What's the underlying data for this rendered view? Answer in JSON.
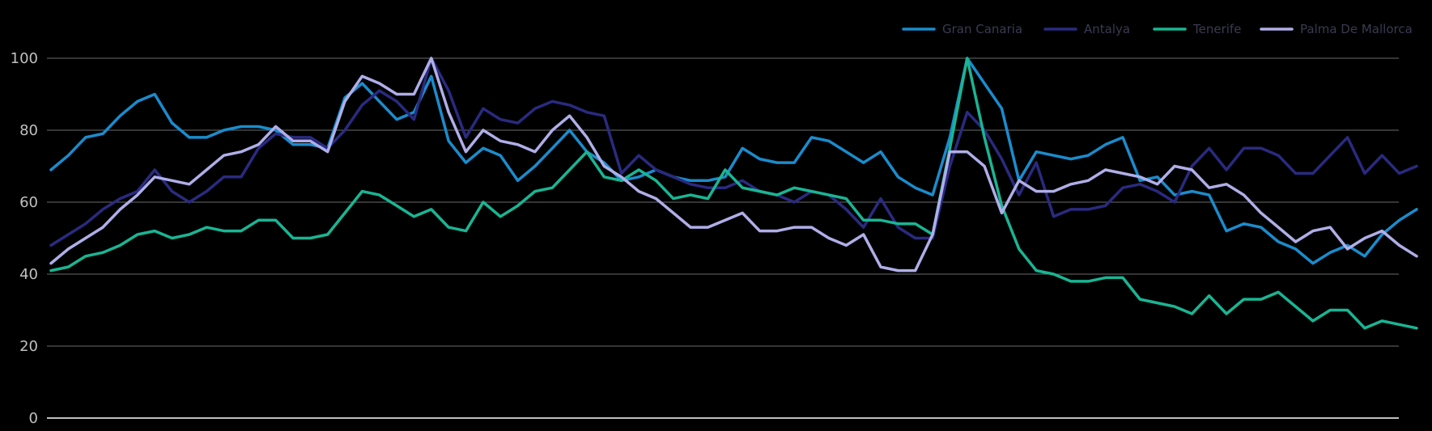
{
  "chart_data": {
    "type": "line",
    "title": "",
    "xlabel": "",
    "ylabel": "",
    "ylim": [
      0,
      100
    ],
    "yticks": [
      0,
      20,
      40,
      60,
      80,
      100
    ],
    "grid": true,
    "legend_position": "top-right",
    "x": [
      1,
      2,
      3,
      4,
      5,
      6,
      7,
      8,
      9,
      10,
      11,
      12,
      13,
      14,
      15,
      16,
      17,
      18,
      19,
      20,
      21,
      22,
      23,
      24,
      25,
      26,
      27,
      28,
      29,
      30,
      31,
      32,
      33,
      34,
      35,
      36,
      37,
      38,
      39,
      40,
      41,
      42,
      43,
      44,
      45,
      46,
      47,
      48,
      49,
      50,
      51,
      52,
      53,
      54,
      55,
      56,
      57,
      58,
      59,
      60,
      61,
      62,
      63,
      64,
      65,
      66,
      67,
      68,
      69,
      70,
      71,
      72,
      73,
      74,
      75,
      76,
      77,
      78,
      79,
      80
    ],
    "series": [
      {
        "name": "Gran Canaria",
        "color": "#1a8ccc",
        "values": [
          69,
          73,
          78,
          79,
          84,
          88,
          90,
          82,
          78,
          78,
          80,
          81,
          81,
          80,
          76,
          76,
          75,
          89,
          93,
          88,
          83,
          85,
          95,
          77,
          71,
          75,
          73,
          66,
          70,
          75,
          80,
          74,
          71,
          66,
          67,
          69,
          67,
          66,
          66,
          67,
          75,
          72,
          71,
          71,
          78,
          77,
          74,
          71,
          74,
          67,
          64,
          62,
          78,
          100,
          93,
          86,
          66,
          74,
          73,
          72,
          73,
          76,
          78,
          66,
          67,
          62,
          63,
          62,
          52,
          54,
          53,
          49,
          47,
          43,
          46,
          48,
          45,
          51,
          55,
          58
        ]
      },
      {
        "name": "Antalya",
        "color": "#2a2a80",
        "values": [
          48,
          51,
          54,
          58,
          61,
          63,
          69,
          63,
          60,
          63,
          67,
          67,
          75,
          79,
          78,
          78,
          75,
          80,
          87,
          91,
          88,
          83,
          100,
          91,
          78,
          86,
          83,
          82,
          86,
          88,
          87,
          85,
          84,
          68,
          73,
          69,
          67,
          65,
          64,
          64,
          66,
          63,
          62,
          60,
          63,
          62,
          58,
          53,
          61,
          53,
          50,
          50,
          70,
          85,
          80,
          72,
          62,
          71,
          56,
          58,
          58,
          59,
          64,
          65,
          63,
          60,
          70,
          75,
          69,
          75,
          75,
          73,
          68,
          68,
          73,
          78,
          68,
          73,
          68,
          70
        ]
      },
      {
        "name": "Tenerife",
        "color": "#1ab593",
        "values": [
          41,
          42,
          45,
          46,
          48,
          51,
          52,
          50,
          51,
          53,
          52,
          52,
          55,
          55,
          50,
          50,
          51,
          57,
          63,
          62,
          59,
          56,
          58,
          53,
          52,
          60,
          56,
          59,
          63,
          64,
          69,
          74,
          67,
          66,
          69,
          66,
          61,
          62,
          61,
          69,
          64,
          63,
          62,
          64,
          63,
          62,
          61,
          55,
          55,
          54,
          54,
          51,
          75,
          100,
          78,
          59,
          47,
          41,
          40,
          38,
          38,
          39,
          39,
          33,
          32,
          31,
          29,
          34,
          29,
          33,
          33,
          35,
          31,
          27,
          30,
          30,
          25,
          27,
          26,
          25
        ]
      },
      {
        "name": "Palma De Mallorca",
        "color": "#b0aee8",
        "values": [
          43,
          47,
          50,
          53,
          58,
          62,
          67,
          66,
          65,
          69,
          73,
          74,
          76,
          81,
          77,
          77,
          74,
          88,
          95,
          93,
          90,
          90,
          100,
          85,
          74,
          80,
          77,
          76,
          74,
          80,
          84,
          78,
          70,
          67,
          63,
          61,
          57,
          53,
          53,
          55,
          57,
          52,
          52,
          53,
          53,
          50,
          48,
          51,
          42,
          41,
          41,
          51,
          74,
          74,
          70,
          57,
          66,
          63,
          63,
          65,
          66,
          69,
          68,
          67,
          65,
          70,
          69,
          64,
          65,
          62,
          57,
          53,
          49,
          52,
          53,
          47,
          50,
          52,
          48,
          45
        ]
      }
    ]
  }
}
